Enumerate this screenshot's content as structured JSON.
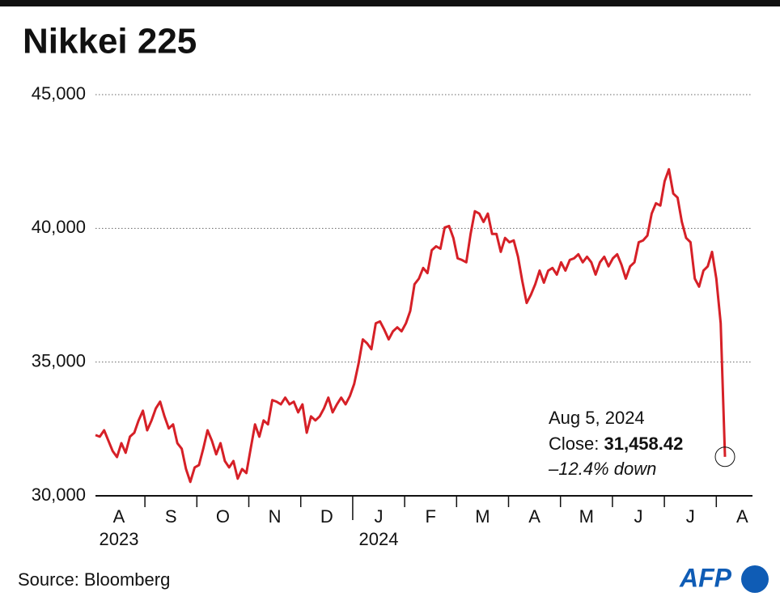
{
  "chart_data": {
    "type": "line",
    "title": "Nikkei 225",
    "source": "Source: Bloomberg",
    "logo": "AFP",
    "month_labels": [
      "A",
      "S",
      "O",
      "N",
      "D",
      "J",
      "F",
      "M",
      "A",
      "M",
      "J",
      "J",
      "A"
    ],
    "year_labels": [
      "2023",
      "2024"
    ],
    "ylim": [
      30000,
      45000
    ],
    "yticks": [
      {
        "value": 30000,
        "label": "30,000"
      },
      {
        "value": 35000,
        "label": "35,000"
      },
      {
        "value": 40000,
        "label": "40,000"
      },
      {
        "value": 45000,
        "label": "45,000"
      }
    ],
    "grid": true,
    "series": [
      {
        "name": "Nikkei 225",
        "color": "#d62027",
        "values": [
          32270,
          32210,
          32450,
          32060,
          31670,
          31450,
          31970,
          31610,
          32210,
          32360,
          32820,
          33180,
          32450,
          32820,
          33270,
          33520,
          32970,
          32520,
          32670,
          31970,
          31760,
          31000,
          30520,
          31060,
          31150,
          31760,
          32450,
          32060,
          31550,
          31970,
          31300,
          31060,
          31300,
          30640,
          31000,
          30850,
          31760,
          32670,
          32210,
          32820,
          32670,
          33580,
          33520,
          33420,
          33670,
          33420,
          33520,
          33120,
          33420,
          32360,
          32970,
          32820,
          32970,
          33270,
          33670,
          33120,
          33420,
          33670,
          33420,
          33730,
          34180,
          34940,
          35850,
          35700,
          35480,
          36450,
          36520,
          36210,
          35850,
          36150,
          36300,
          36150,
          36450,
          36910,
          37910,
          38120,
          38520,
          38330,
          39180,
          39330,
          39240,
          40030,
          40090,
          39640,
          38880,
          38820,
          38730,
          39790,
          40640,
          40550,
          40240,
          40550,
          39790,
          39790,
          39120,
          39640,
          39480,
          39550,
          38940,
          38030,
          37210,
          37520,
          37910,
          38420,
          37970,
          38420,
          38520,
          38270,
          38730,
          38420,
          38820,
          38880,
          39030,
          38730,
          38940,
          38730,
          38270,
          38730,
          38940,
          38580,
          38880,
          39030,
          38640,
          38120,
          38580,
          38730,
          39480,
          39550,
          39730,
          40550,
          40940,
          40850,
          41760,
          42210,
          41300,
          41150,
          40240,
          39640,
          39480,
          38120,
          37820,
          38420,
          38580,
          39120,
          38120,
          36450,
          31458.42
        ]
      }
    ],
    "annotation": {
      "date": "Aug 5, 2024",
      "close_label": "Close:",
      "close_value": "31,458.42",
      "change": "–12.4% down"
    }
  }
}
